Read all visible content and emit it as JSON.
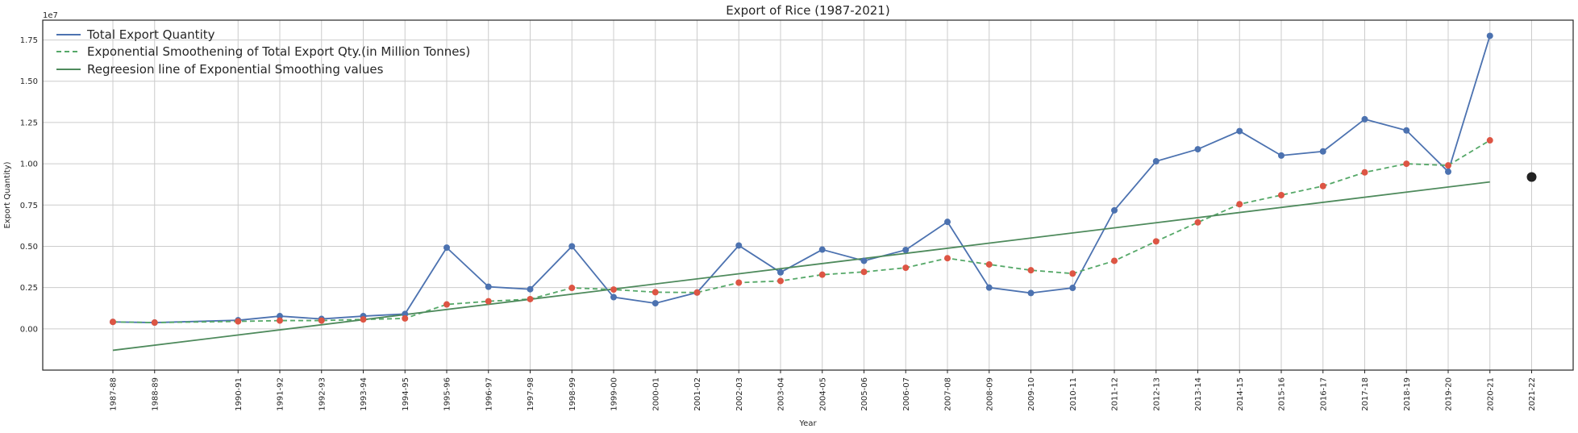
{
  "chart_data": {
    "type": "line",
    "title": "Export of Rice (1987-2021)",
    "xlabel": "Year",
    "ylabel": "Export Quantity)",
    "y_offset_text": "1e7",
    "y_multiplier": 10000000,
    "ylim": [
      -2.5,
      18.7
    ],
    "yticks": [
      0.0,
      2.5,
      5.0,
      7.5,
      10.0,
      12.5,
      15.0,
      17.5
    ],
    "ytick_labels": [
      "0.00",
      "0.25",
      "0.50",
      "0.75",
      "1.00",
      "1.25",
      "1.50",
      "1.75"
    ],
    "grid": true,
    "legend_position": "top-left",
    "categories": [
      "1987-88",
      "1988-89",
      "1990-91",
      "1991-92",
      "1992-93",
      "1993-94",
      "1994-95",
      "1995-96",
      "1996-97",
      "1997-98",
      "1998-99",
      "1999-00",
      "2000-01",
      "2001-02",
      "2002-03",
      "2003-04",
      "2004-05",
      "2005-06",
      "2006-07",
      "2007-08",
      "2008-09",
      "2009-10",
      "2010-11",
      "2011-12",
      "2012-13",
      "2013-14",
      "2014-15",
      "2015-16",
      "2016-17",
      "2017-18",
      "2018-19",
      "2019-20",
      "2020-21",
      "2021-22"
    ],
    "series": [
      {
        "name": "Total Export Quantity",
        "color": "#4c72b0",
        "style": "solid",
        "marker_color": "#4c72b0",
        "values": [
          0.42,
          0.38,
          0.52,
          0.77,
          0.6,
          0.77,
          0.9,
          4.92,
          2.55,
          2.4,
          5.0,
          1.92,
          1.55,
          2.2,
          5.05,
          3.42,
          4.8,
          4.12,
          4.78,
          6.48,
          2.5,
          2.17,
          2.48,
          7.18,
          10.15,
          10.88,
          11.98,
          10.5,
          10.75,
          12.7,
          12.02,
          9.52,
          17.75,
          null
        ]
      },
      {
        "name": "Exponential Smoothening of Total Export Qty.(in Million Tonnes)",
        "color": "#55a868",
        "style": "dashed",
        "marker_color": "#dd5544",
        "values": [
          0.42,
          0.38,
          0.45,
          0.5,
          0.5,
          0.57,
          0.63,
          1.48,
          1.67,
          1.8,
          2.48,
          2.38,
          2.22,
          2.2,
          2.8,
          2.9,
          3.28,
          3.45,
          3.7,
          4.28,
          3.9,
          3.55,
          3.35,
          4.12,
          5.3,
          6.45,
          7.55,
          8.1,
          8.65,
          9.48,
          10.0,
          9.9,
          11.42,
          null
        ]
      },
      {
        "name": "Regreesion line of Exponential Smoothing values",
        "color": "#4e8a5c",
        "style": "solid",
        "marker_color": null,
        "x_range": [
          "1987-88",
          "2020-21"
        ],
        "endpoints": [
          -1.3,
          8.9
        ]
      }
    ],
    "forecast_point": {
      "x": "2021-22",
      "y": 9.2,
      "color": "#222222"
    }
  }
}
